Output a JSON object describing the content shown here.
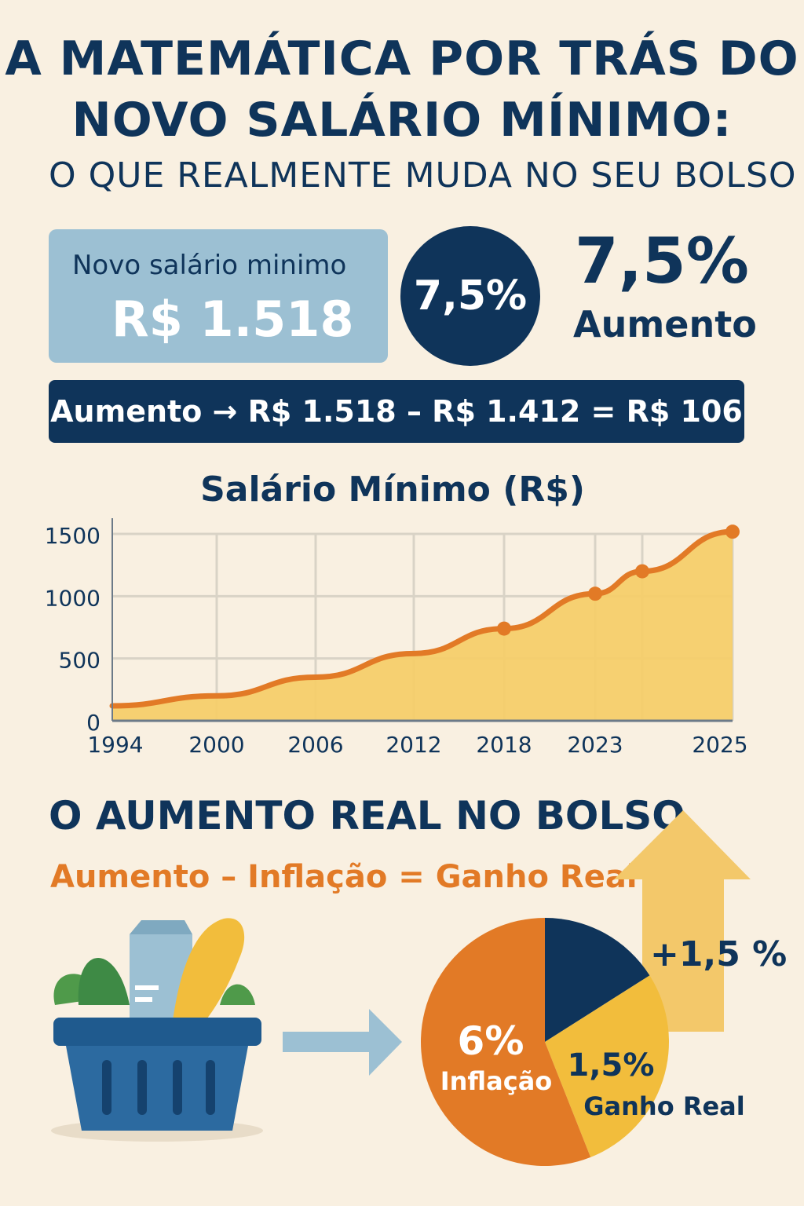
{
  "title_line1": "A MATEMÁTICA POR TRÁS DO",
  "title_line2": "NOVO SALÁRIO MÍNIMO:",
  "subtitle": "O QUE REALMENTE MUDA NO SEU BOLSO",
  "card": {
    "label": "Novo salário minimo",
    "value": "R$ 1.518"
  },
  "circle_value": "7,5%",
  "big_percent": "7,5%",
  "big_label": "Aumento",
  "formula": "Aumento → R$ 1.518 – R$ 1.412 = R$ 106",
  "section2_title": "O AUMENTO REAL NO BOLSO",
  "equation": "Aumento – Inflação = Ganho Real",
  "arrow_label": "+1,5 %",
  "colors": {
    "navy": "#0f345a",
    "orange": "#e27a26",
    "yellow": "#f2bd3c",
    "light_blue": "#9cc0d3"
  },
  "chart_data": [
    {
      "type": "area",
      "title": "Salário Mínimo (R$)",
      "xlabel": "",
      "ylabel": "",
      "x": [
        "1994",
        "2000",
        "2006",
        "2012",
        "2018",
        "2023",
        "",
        "2025"
      ],
      "values": [
        120,
        200,
        350,
        540,
        740,
        1020,
        1200,
        1518
      ],
      "markers": [
        false,
        false,
        false,
        false,
        true,
        true,
        true,
        true
      ],
      "yticks": [
        "0",
        "500",
        "1000",
        "1500"
      ],
      "ylim": [
        0,
        1500
      ],
      "grid": true
    },
    {
      "type": "pie",
      "slices": [
        {
          "label": "",
          "value": 16,
          "color": "#0f345a"
        },
        {
          "label": "1,5%",
          "sublabel": "Ganho Real",
          "value": 28,
          "color": "#f2bd3c"
        },
        {
          "label": "6%",
          "sublabel": "Inflação",
          "value": 56,
          "color": "#e27a26"
        }
      ]
    }
  ]
}
